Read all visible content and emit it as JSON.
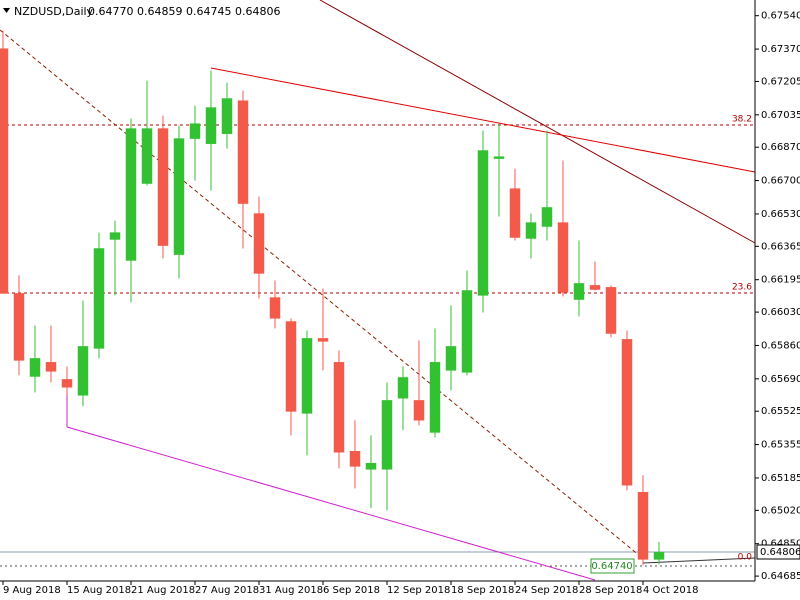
{
  "chart_data": {
    "type": "candlestick",
    "title": "NZDUSD,Daily",
    "subtitle": "0.64770 0.64859 0.64745 0.64806",
    "categories": [
      "9 Aug 2018",
      null,
      null,
      null,
      "15 Aug 2018",
      null,
      null,
      null,
      "21 Aug 2018",
      null,
      null,
      null,
      "27 Aug 2018",
      null,
      null,
      null,
      "31 Aug 2018",
      null,
      null,
      null,
      "6 Sep 2018",
      null,
      null,
      null,
      "12 Sep 2018",
      null,
      null,
      null,
      "18 Sep 2018",
      null,
      null,
      null,
      "24 Sep 2018",
      null,
      null,
      null,
      "28 Sep 2018",
      null,
      null,
      null,
      "4 Oct 2018",
      null
    ],
    "open": [
      0.67372,
      0.66125,
      0.65702,
      0.65774,
      0.65687,
      0.65606,
      0.65845,
      0.664,
      0.66293,
      0.66685,
      0.66965,
      0.66323,
      0.66914,
      0.66888,
      0.66939,
      0.67107,
      0.66532,
      0.66104,
      0.65982,
      0.65514,
      0.65896,
      0.65774,
      0.65321,
      0.65229,
      0.65229,
      0.65591,
      0.6558,
      0.65417,
      0.65733,
      0.65723,
      0.66115,
      0.66812,
      0.66659,
      0.66405,
      0.66466,
      0.66486,
      0.66094,
      0.66166,
      0.66156,
      0.65891,
      0.65112,
      0.6477
    ],
    "high": [
      0.67464,
      0.66217,
      0.65962,
      0.65962,
      0.65753,
      0.66089,
      0.66435,
      0.66496,
      0.67016,
      0.67209,
      0.67031,
      0.6698,
      0.67082,
      0.6726,
      0.67199,
      0.67158,
      0.66619,
      0.66191,
      0.65998,
      0.65937,
      0.6615,
      0.65835,
      0.65479,
      0.65402,
      0.65672,
      0.65753,
      0.65886,
      0.65947,
      0.66064,
      0.66242,
      0.66955,
      0.6699,
      0.66761,
      0.66532,
      0.66955,
      0.66802,
      0.66395,
      0.66288,
      0.66166,
      0.65937,
      0.65199,
      0.64859
    ],
    "low": [
      0.66125,
      0.65708,
      0.65621,
      0.65672,
      0.65606,
      0.6555,
      0.65794,
      0.66115,
      0.66079,
      0.66675,
      0.66303,
      0.66201,
      0.667,
      0.66649,
      0.66863,
      0.66354,
      0.66099,
      0.65947,
      0.65402,
      0.653,
      0.65733,
      0.65234,
      0.65132,
      0.65031,
      0.6502,
      0.65428,
      0.65453,
      0.65392,
      0.65631,
      0.65708,
      0.66028,
      0.66517,
      0.66395,
      0.66303,
      0.66395,
      0.6611,
      0.66008,
      0.6614,
      0.65901,
      0.65122,
      0.6474,
      0.64745
    ],
    "close": [
      0.66125,
      0.65784,
      0.65794,
      0.65728,
      0.65647,
      0.65855,
      0.66354,
      0.66435,
      0.66965,
      0.66965,
      0.66369,
      0.66914,
      0.6699,
      0.67072,
      0.67118,
      0.66583,
      0.66227,
      0.65998,
      0.65524,
      0.65896,
      0.65881,
      0.65316,
      0.65244,
      0.6526,
      0.6558,
      0.65697,
      0.65479,
      0.65774,
      0.65855,
      0.6614,
      0.66853,
      0.66822,
      0.6641,
      0.66486,
      0.66563,
      0.6613,
      0.66176,
      0.66145,
      0.65921,
      0.65148,
      0.6477,
      0.64806
    ],
    "up_color": "#33c133",
    "down_color": "#f25b4b",
    "ylim": [
      0.6466,
      0.6762
    ],
    "yticks": [
      {
        "value": 0.6754,
        "label": "0.67540"
      },
      {
        "value": 0.6737,
        "label": "0.67370"
      },
      {
        "value": 0.67205,
        "label": "0.67205"
      },
      {
        "value": 0.67035,
        "label": "0.67035"
      },
      {
        "value": 0.6687,
        "label": "0.66870"
      },
      {
        "value": 0.667,
        "label": "0.66700"
      },
      {
        "value": 0.6653,
        "label": "0.66530"
      },
      {
        "value": 0.66365,
        "label": "0.66365"
      },
      {
        "value": 0.66195,
        "label": "0.66195"
      },
      {
        "value": 0.6603,
        "label": "0.66030"
      },
      {
        "value": 0.6586,
        "label": "0.65860"
      },
      {
        "value": 0.6569,
        "label": "0.65690"
      },
      {
        "value": 0.65525,
        "label": "0.65525"
      },
      {
        "value": 0.65355,
        "label": "0.65355"
      },
      {
        "value": 0.65185,
        "label": "0.65185"
      },
      {
        "value": 0.6502,
        "label": "0.65020"
      },
      {
        "value": 0.6485,
        "label": "0.64850"
      },
      {
        "value": 0.64685,
        "label": "0.64685"
      }
    ],
    "annotations": {
      "fib_382": "38.2",
      "fib_236": "23.6",
      "fib_0": "0.0",
      "current_price": "0.64806",
      "low_price": "0.64740"
    }
  }
}
